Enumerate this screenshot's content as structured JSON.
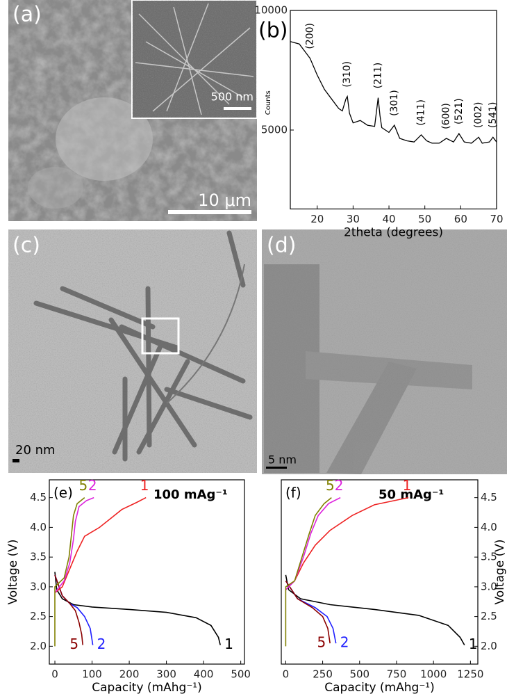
{
  "panels": {
    "a": {
      "label": "(a)",
      "scale_bar": "10 μm",
      "inset_scale_bar": "500 nm"
    },
    "c": {
      "label": "(c)",
      "scale_bar": "20 nm"
    },
    "d": {
      "label": "(d)",
      "scale_bar": "5 nm"
    }
  },
  "chart_data": [
    {
      "type": "line",
      "panel_label": "(b)",
      "x_label": "2theta (degrees)",
      "y_label": "Counts",
      "xlim": [
        12.5,
        70
      ],
      "xticks": [
        20,
        30,
        40,
        50,
        60,
        70
      ],
      "ylim": [
        1700,
        10000
      ],
      "yticks": [
        5000,
        10000
      ],
      "series": [
        {
          "color": "#000000",
          "x": [
            12.5,
            15,
            17,
            18,
            20,
            22,
            24,
            26,
            27,
            28,
            28.4,
            29,
            30,
            32,
            34,
            36,
            37,
            37.5,
            38,
            39,
            40,
            41.5,
            43,
            45,
            47,
            49,
            50.5,
            52,
            54,
            56,
            58,
            59.5,
            61,
            63,
            65,
            66,
            68,
            69,
            70
          ],
          "values": [
            8700,
            8600,
            8200,
            8000,
            7300,
            6700,
            6300,
            5900,
            5800,
            6300,
            6400,
            5700,
            5300,
            5400,
            5200,
            5150,
            6350,
            5600,
            5100,
            5000,
            4900,
            5200,
            4650,
            4550,
            4500,
            4800,
            4550,
            4450,
            4450,
            4650,
            4500,
            4850,
            4500,
            4450,
            4700,
            4450,
            4500,
            4700,
            4500
          ]
        }
      ],
      "annotations": [
        {
          "label": "(200)",
          "x": 18
        },
        {
          "label": "(310)",
          "x": 28.4
        },
        {
          "label": "(211)",
          "x": 37
        },
        {
          "label": "(301)",
          "x": 41.5
        },
        {
          "label": "(411)",
          "x": 49
        },
        {
          "label": "(600)",
          "x": 56
        },
        {
          "label": "(521)",
          "x": 59.5
        },
        {
          "label": "(002)",
          "x": 65
        },
        {
          "label": "(541)",
          "x": 69
        }
      ]
    },
    {
      "type": "line",
      "panel_label": "(e)",
      "annotation": "100 mAg⁻¹",
      "x_label": "Capacity (mAhg⁻¹)",
      "y_label": "Voltage (V)",
      "xlim": [
        -15,
        510
      ],
      "xticks": [
        0,
        100,
        200,
        300,
        400,
        500
      ],
      "ylim": [
        1.7,
        4.8
      ],
      "yticks": [
        {
          "value": 2,
          "label": "2.0"
        },
        2.5,
        {
          "value": 3,
          "label": "3.0"
        },
        3.5,
        {
          "value": 4,
          "label": "4.0"
        },
        4.5
      ],
      "series": [
        {
          "name": "1",
          "color": "#000000",
          "x": [
            0,
            5,
            20,
            50,
            100,
            200,
            300,
            380,
            420,
            440,
            445
          ],
          "values": [
            3.25,
            2.95,
            2.8,
            2.7,
            2.66,
            2.62,
            2.57,
            2.48,
            2.35,
            2.15,
            2.02
          ]
        },
        {
          "name": "2",
          "color": "#1f1fff",
          "x": [
            0,
            20,
            40,
            60,
            80,
            95,
            100,
            102
          ],
          "values": [
            3.2,
            2.85,
            2.72,
            2.65,
            2.5,
            2.3,
            2.1,
            2.02
          ]
        },
        {
          "name": "5",
          "color": "#8b0000",
          "x": [
            0,
            20,
            40,
            55,
            65,
            72,
            75
          ],
          "values": [
            3.2,
            2.85,
            2.72,
            2.6,
            2.4,
            2.2,
            2.02
          ]
        },
        {
          "name": "1",
          "color": "#ee2222",
          "x": [
            0,
            20,
            40,
            60,
            80,
            120,
            150,
            180,
            220,
            245
          ],
          "values": [
            2.9,
            3.0,
            3.3,
            3.6,
            3.85,
            4.0,
            4.15,
            4.3,
            4.42,
            4.5
          ]
        },
        {
          "name": "2",
          "color": "#dd22dd",
          "x": [
            0,
            25,
            40,
            50,
            55,
            65,
            85,
            105
          ],
          "values": [
            2.9,
            3.1,
            3.4,
            3.8,
            4.1,
            4.35,
            4.45,
            4.5
          ]
        },
        {
          "name": "5",
          "color": "#808000",
          "x": [
            0,
            0,
            25,
            38,
            45,
            50,
            60,
            80
          ],
          "values": [
            2.0,
            3.0,
            3.15,
            3.5,
            3.9,
            4.2,
            4.4,
            4.5
          ]
        }
      ]
    },
    {
      "type": "line",
      "panel_label": "(f)",
      "annotation": "50 mAg⁻¹",
      "x_label": "Capacity (mAhg⁻¹)",
      "y_label": "Voltage (V)",
      "xlim": [
        -30,
        1300
      ],
      "xticks": [
        0,
        250,
        500,
        750,
        1000,
        1250
      ],
      "ylim": [
        1.7,
        4.8
      ],
      "yticks": [
        {
          "value": 2,
          "label": "2.0"
        },
        2.5,
        {
          "value": 3,
          "label": "3.0"
        },
        3.5,
        {
          "value": 4,
          "label": "4.0"
        },
        4.5
      ],
      "series": [
        {
          "name": "1",
          "color": "#000000",
          "x": [
            0,
            20,
            100,
            300,
            600,
            900,
            1100,
            1180,
            1210
          ],
          "values": [
            3.2,
            2.95,
            2.8,
            2.7,
            2.62,
            2.52,
            2.35,
            2.15,
            2.02
          ]
        },
        {
          "name": "2",
          "color": "#1f1fff",
          "x": [
            0,
            80,
            200,
            280,
            320,
            340
          ],
          "values": [
            3.1,
            2.8,
            2.65,
            2.5,
            2.3,
            2.05
          ]
        },
        {
          "name": "5",
          "color": "#8b0000",
          "x": [
            0,
            80,
            180,
            250,
            285,
            300
          ],
          "values": [
            3.1,
            2.8,
            2.65,
            2.5,
            2.3,
            2.05
          ]
        },
        {
          "name": "1",
          "color": "#ee2222",
          "x": [
            0,
            60,
            120,
            200,
            300,
            450,
            600,
            830
          ],
          "values": [
            2.95,
            3.1,
            3.4,
            3.7,
            3.95,
            4.2,
            4.38,
            4.5
          ]
        },
        {
          "name": "2",
          "color": "#dd22dd",
          "x": [
            0,
            60,
            120,
            170,
            220,
            290,
            370
          ],
          "values": [
            2.95,
            3.1,
            3.5,
            3.9,
            4.2,
            4.4,
            4.5
          ]
        },
        {
          "name": "5",
          "color": "#808000",
          "x": [
            0,
            0,
            60,
            110,
            160,
            200,
            260,
            310
          ],
          "values": [
            2.0,
            3.0,
            3.1,
            3.5,
            3.9,
            4.2,
            4.4,
            4.5
          ]
        }
      ]
    }
  ]
}
